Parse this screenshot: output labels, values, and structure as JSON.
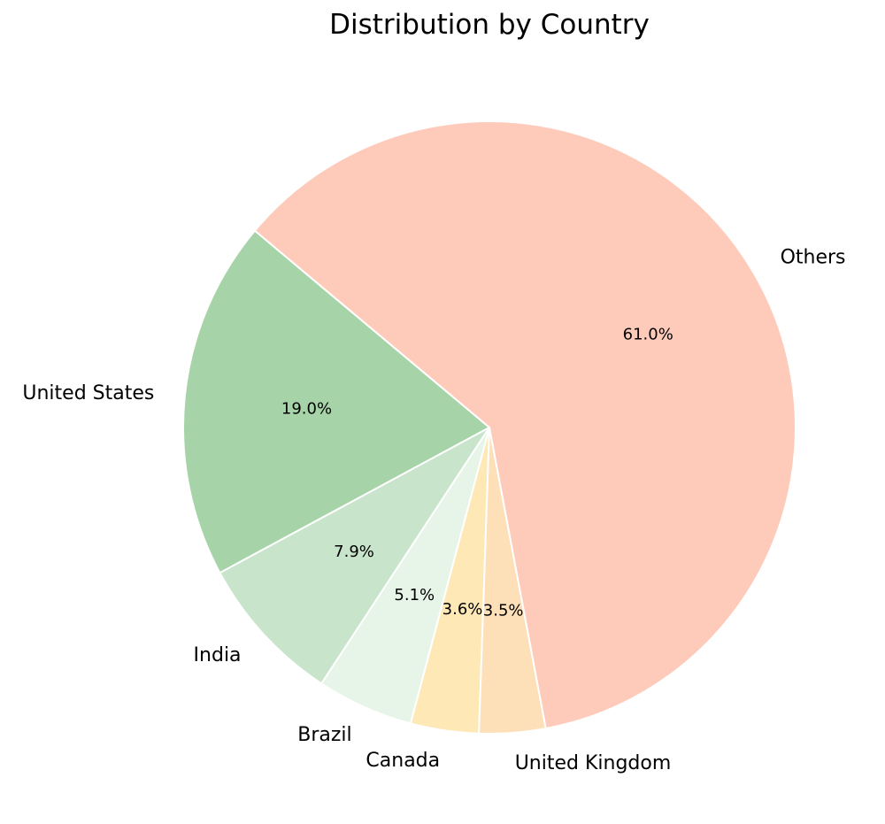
{
  "chart_data": {
    "type": "pie",
    "title": "Distribution by Country",
    "slices": [
      {
        "label": "United States",
        "value": 19.0,
        "pct_label": "19.0%",
        "color": "#a6d4a8"
      },
      {
        "label": "India",
        "value": 7.9,
        "pct_label": "7.9%",
        "color": "#c8e5cb"
      },
      {
        "label": "Brazil",
        "value": 5.1,
        "pct_label": "5.1%",
        "color": "#e7f4e8"
      },
      {
        "label": "Canada",
        "value": 3.6,
        "pct_label": "3.6%",
        "color": "#fde8b6"
      },
      {
        "label": "United Kingdom",
        "value": 3.5,
        "pct_label": "3.5%",
        "color": "#fde0b8"
      },
      {
        "label": "Others",
        "value": 61.0,
        "pct_label": "61.0%",
        "color": "#fecbbb"
      }
    ],
    "start_angle_deg": 140,
    "direction": "counterclockwise",
    "legend": "none"
  }
}
